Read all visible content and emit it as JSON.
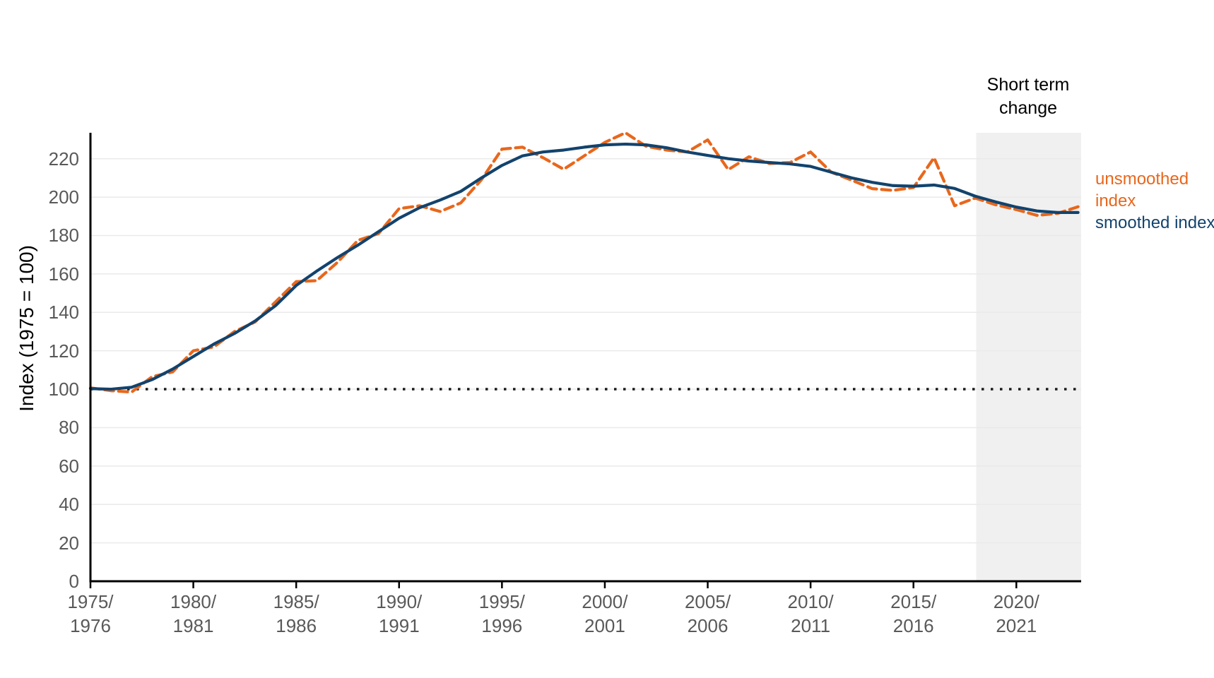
{
  "chart_data": {
    "type": "line",
    "title": "",
    "xlabel": "",
    "ylabel": "Index (1975 = 100)",
    "xlim": [
      1975,
      2023.15
    ],
    "ylim": [
      0,
      233.5
    ],
    "grid": "horizontal",
    "years_start": 1975,
    "y_ticks": [
      0,
      20,
      40,
      60,
      80,
      100,
      120,
      140,
      160,
      180,
      200,
      220
    ],
    "x_tick_years": [
      1975,
      1980,
      1985,
      1990,
      1995,
      2000,
      2005,
      2010,
      2015,
      2020
    ],
    "x_tick_labels": [
      [
        "1975/",
        "1976"
      ],
      [
        "1980/",
        "1981"
      ],
      [
        "1985/",
        "1986"
      ],
      [
        "1990/",
        "1991"
      ],
      [
        "1995/",
        "1996"
      ],
      [
        "2000/",
        "2001"
      ],
      [
        "2005/",
        "2006"
      ],
      [
        "2010/",
        "2011"
      ],
      [
        "2015/",
        "2016"
      ],
      [
        "2020/",
        "2021"
      ]
    ],
    "reference_line": {
      "value": 100,
      "style": "dotted",
      "color": "#1a1a1a"
    },
    "shaded_region": {
      "label": "Short term change",
      "x_start": 2018.05,
      "x_end": 2023.15,
      "color": "#f0f0f0"
    },
    "legend_position": "right",
    "series": [
      {
        "name": "unsmoothed index",
        "style": "dashed",
        "color": "#e8671c",
        "values": [
          100.7,
          99.2,
          98.5,
          106.5,
          109,
          120,
          122,
          130,
          135,
          145.5,
          156,
          156.5,
          166,
          177.5,
          181,
          194,
          195.5,
          192.5,
          197,
          209,
          225,
          226,
          220.5,
          214.5,
          221.5,
          228.5,
          233.5,
          226.5,
          224.5,
          223.5,
          229.8,
          214.3,
          221,
          217.5,
          218,
          223.5,
          213,
          208.8,
          204.4,
          203.5,
          205,
          220.5,
          195.5,
          199.5,
          196,
          193.5,
          190.5,
          191.5,
          195
        ]
      },
      {
        "name": "smoothed index",
        "style": "solid",
        "color": "#12436d",
        "values": [
          100.3,
          100,
          101,
          105,
          110.5,
          117,
          123.5,
          129,
          135.5,
          143.5,
          154,
          161.5,
          168.5,
          175,
          182,
          189,
          194.5,
          198.5,
          203,
          210,
          216.5,
          221.5,
          223.5,
          224.5,
          226,
          227.2,
          227.6,
          227.2,
          225.7,
          223.5,
          221.7,
          220,
          218.8,
          218,
          217.3,
          216,
          213,
          210,
          207.7,
          206,
          205.7,
          206.3,
          204.5,
          200.5,
          197.5,
          194.8,
          192.8,
          192,
          192
        ]
      }
    ],
    "colors": {
      "axis": "#000000",
      "gridline": "#eaeaea",
      "tick_text": "#595959"
    }
  },
  "annotation": {
    "lines": [
      "Short term",
      "change"
    ]
  }
}
